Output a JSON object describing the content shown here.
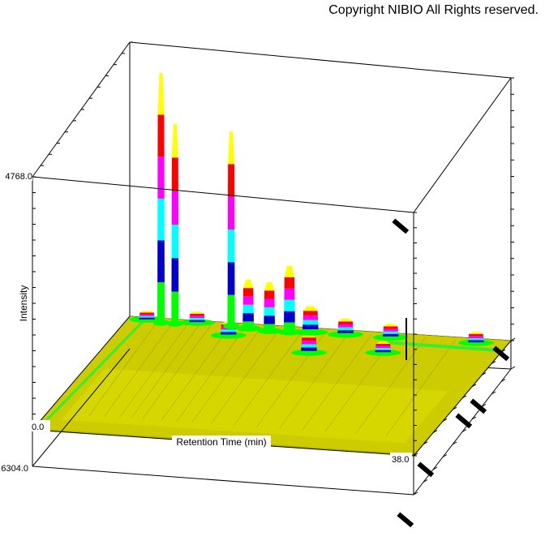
{
  "copyright": "Copyright NIBIO All Rights reserved.",
  "chart_data": {
    "type": "surface-3d",
    "xlabel": "Retention Time (min)",
    "ylabel": "Intensity",
    "xlim": [
      0.0,
      38.0
    ],
    "x_tick_labels": [
      "0.0",
      "38.0"
    ],
    "z_top_label": "4768.0",
    "z_bottom_label": "6304.0",
    "intensity_color_bands": [
      "#00ff00",
      "#0000cc",
      "#00ffff",
      "#ff00ff",
      "#ff0000",
      "#ffff00"
    ],
    "surface_color": "#cccc00",
    "peaks": [
      {
        "rt": 3.6,
        "depth": 0.05,
        "rel_height": 1.0
      },
      {
        "rt": 5.0,
        "depth": 0.05,
        "rel_height": 0.8
      },
      {
        "rt": 10.5,
        "depth": 0.04,
        "rel_height": 0.78
      },
      {
        "rt": 16.5,
        "depth": 0.06,
        "rel_height": 0.27
      },
      {
        "rt": 14.5,
        "depth": 0.06,
        "rel_height": 0.2
      },
      {
        "rt": 12.3,
        "depth": 0.05,
        "rel_height": 0.2
      },
      {
        "rt": 11.0,
        "depth": 0.12,
        "rel_height": 0.06
      },
      {
        "rt": 18.5,
        "depth": 0.05,
        "rel_height": 0.11
      },
      {
        "rt": 20.0,
        "depth": 0.22,
        "rel_height": 0.08
      },
      {
        "rt": 22.0,
        "depth": 0.05,
        "rel_height": 0.07
      },
      {
        "rt": 26.5,
        "depth": 0.05,
        "rel_height": 0.06
      },
      {
        "rt": 27.0,
        "depth": 0.18,
        "rel_height": 0.05
      },
      {
        "rt": 35.0,
        "depth": 0.05,
        "rel_height": 0.05
      },
      {
        "rt": 2.0,
        "depth": 0.03,
        "rel_height": 0.04
      },
      {
        "rt": 7.0,
        "depth": 0.03,
        "rel_height": 0.05
      }
    ]
  }
}
